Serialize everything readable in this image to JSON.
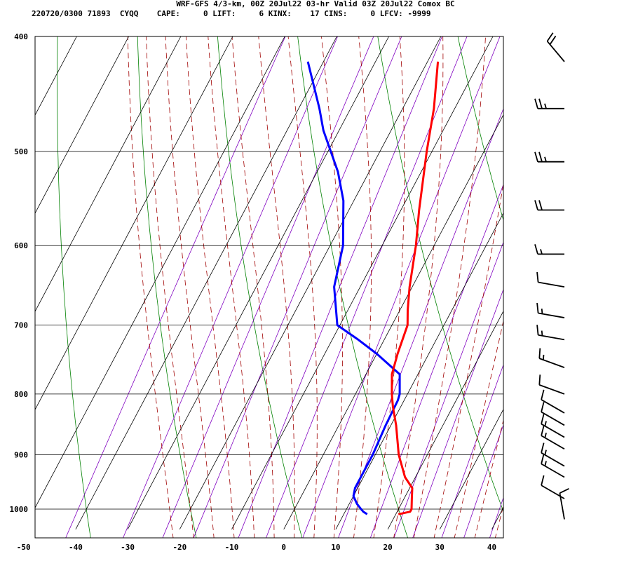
{
  "header": {
    "title": "WRF-GFS 4/3-km, 00Z 20Jul22 03-hr Valid 03Z 20Jul22 Comox BC",
    "line2": "220720/0300 71893  CYQQ    CAPE:     0 LIFT:     6 KINX:    17 CINS:     0 LFCV: -9999"
  },
  "colors": {
    "temperature": "#ff0000",
    "dewpoint": "#0000ff",
    "isotherm": "#000000",
    "isobar": "#000000",
    "dry_adiabat": "#008000",
    "moist_adiabat": "#a00000",
    "mixing_ratio": "#8000c0",
    "wind_barb": "#000000"
  },
  "chart_data": {
    "type": "skew-t",
    "x_axis": {
      "ticks": [
        "-50",
        "-40",
        "-30",
        "-20",
        "-10",
        "0",
        "10",
        "20",
        "30",
        "40"
      ],
      "range": [
        -50,
        40
      ],
      "unit": "°C"
    },
    "y_axis": {
      "ticks": [
        "400",
        "500",
        "600",
        "700",
        "800",
        "900",
        "1000"
      ],
      "range": [
        400,
        1040
      ],
      "scale": "log"
    },
    "temperature": [
      [
        1010,
        20.5
      ],
      [
        1005,
        22.5
      ],
      [
        1000,
        22.5
      ],
      [
        990,
        22
      ],
      [
        980,
        21.5
      ],
      [
        960,
        20.5
      ],
      [
        940,
        18
      ],
      [
        900,
        14.5
      ],
      [
        850,
        11
      ],
      [
        820,
        8.5
      ],
      [
        800,
        7
      ],
      [
        770,
        5
      ],
      [
        740,
        4
      ],
      [
        700,
        3
      ],
      [
        680,
        1.5
      ],
      [
        650,
        -0.5
      ],
      [
        600,
        -3.5
      ],
      [
        560,
        -6.5
      ],
      [
        500,
        -11
      ],
      [
        460,
        -14
      ],
      [
        420,
        -18
      ]
    ],
    "dewpoint": [
      [
        1010,
        14.5
      ],
      [
        1005,
        13.5
      ],
      [
        1000,
        12.8
      ],
      [
        990,
        11.5
      ],
      [
        975,
        10
      ],
      [
        960,
        9.5
      ],
      [
        900,
        9.5
      ],
      [
        850,
        9
      ],
      [
        810,
        8.8
      ],
      [
        800,
        8.5
      ],
      [
        770,
        6.5
      ],
      [
        740,
        0
      ],
      [
        720,
        -5
      ],
      [
        700,
        -10.5
      ],
      [
        650,
        -15
      ],
      [
        600,
        -17.5
      ],
      [
        550,
        -22
      ],
      [
        520,
        -26
      ],
      [
        480,
        -33
      ],
      [
        460,
        -36
      ],
      [
        420,
        -43
      ]
    ],
    "wind_barbs": [
      {
        "p": 1020,
        "dir": 350,
        "speed": 10
      },
      {
        "p": 980,
        "dir": 300,
        "speed": 10
      },
      {
        "p": 940,
        "dir": 300,
        "speed": 15
      },
      {
        "p": 920,
        "dir": 300,
        "speed": 15
      },
      {
        "p": 890,
        "dir": 300,
        "speed": 15
      },
      {
        "p": 870,
        "dir": 300,
        "speed": 15
      },
      {
        "p": 850,
        "dir": 300,
        "speed": 10
      },
      {
        "p": 830,
        "dir": 300,
        "speed": 10
      },
      {
        "p": 800,
        "dir": 290,
        "speed": 10
      },
      {
        "p": 760,
        "dir": 290,
        "speed": 15
      },
      {
        "p": 720,
        "dir": 280,
        "speed": 15
      },
      {
        "p": 690,
        "dir": 280,
        "speed": 15
      },
      {
        "p": 650,
        "dir": 280,
        "speed": 10
      },
      {
        "p": 610,
        "dir": 270,
        "speed": 15
      },
      {
        "p": 560,
        "dir": 270,
        "speed": 20
      },
      {
        "p": 510,
        "dir": 270,
        "speed": 25
      },
      {
        "p": 460,
        "dir": 270,
        "speed": 25
      },
      {
        "p": 420,
        "dir": 320,
        "speed": 20
      }
    ]
  }
}
